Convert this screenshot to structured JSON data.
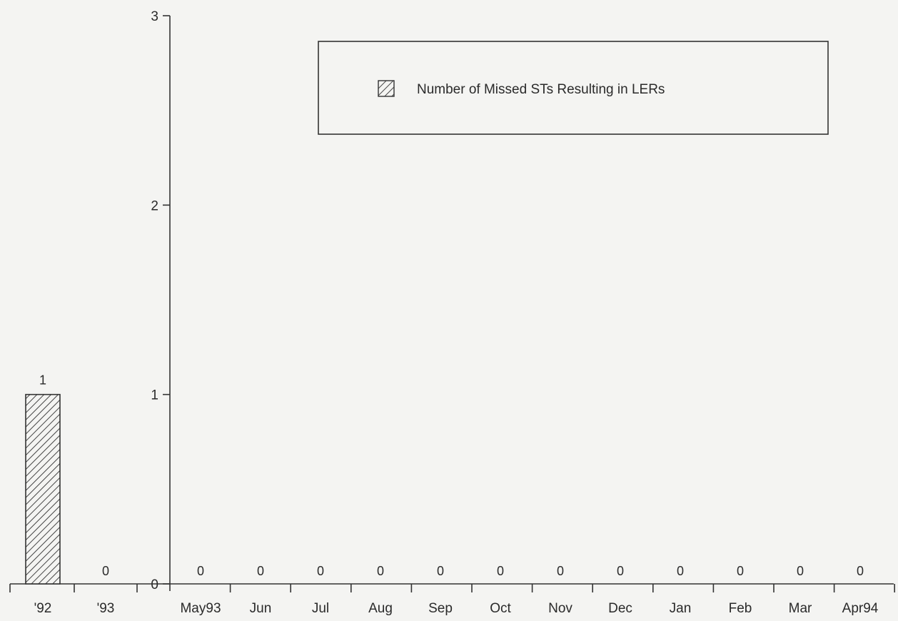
{
  "chart_data": {
    "type": "bar",
    "categories": [
      "'92",
      "'93",
      "May93",
      "Jun",
      "Jul",
      "Aug",
      "Sep",
      "Oct",
      "Nov",
      "Dec",
      "Jan",
      "Feb",
      "Mar",
      "Apr94"
    ],
    "series": [
      {
        "name": "Number of Missed STs Resulting in LERs",
        "values": [
          1,
          0,
          0,
          0,
          0,
          0,
          0,
          0,
          0,
          0,
          0,
          0,
          0,
          0
        ]
      }
    ],
    "data_labels": [
      "1",
      "0",
      "0",
      "0",
      "0",
      "0",
      "0",
      "0",
      "0",
      "0",
      "0",
      "0",
      "0",
      "0"
    ],
    "ylim": [
      0,
      3
    ],
    "yticks": [
      0,
      1,
      2,
      3
    ],
    "title": "",
    "xlabel": "",
    "ylabel": "",
    "grid": false,
    "legend_position": "top-right",
    "bar_fill": "hatched",
    "colors": {
      "axis": "#333333",
      "bar_hatch": "#444444",
      "background": "#f4f4f2"
    }
  }
}
